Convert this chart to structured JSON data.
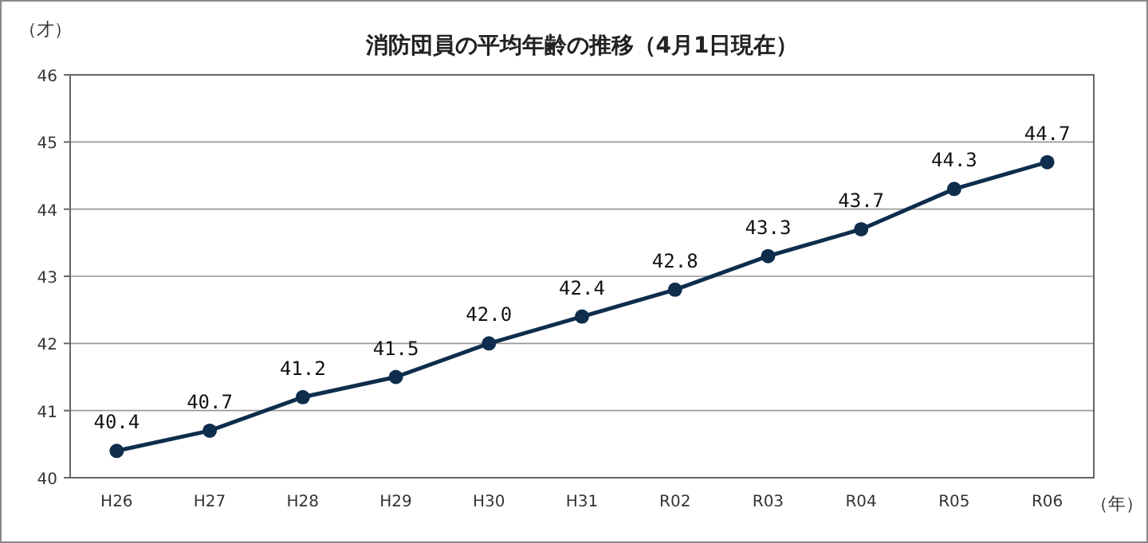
{
  "chart_data": {
    "type": "line",
    "title": "消防団員の平均年齢の推移（4月1日現在）",
    "ylabel": "（才）",
    "xlabel": "（年）",
    "categories": [
      "H26",
      "H27",
      "H28",
      "H29",
      "H30",
      "H31",
      "R02",
      "R03",
      "R04",
      "R05",
      "R06"
    ],
    "series": [
      {
        "color": "#0f2d4d",
        "values": [
          40.4,
          40.7,
          41.2,
          41.5,
          42.0,
          42.4,
          42.8,
          43.3,
          43.7,
          44.3,
          44.7
        ]
      }
    ],
    "value_labels": [
      "40.4",
      "40.7",
      "41.2",
      "41.5",
      "42.0",
      "42.4",
      "42.8",
      "43.3",
      "43.7",
      "44.3",
      "44.7"
    ],
    "ylim": [
      40,
      46
    ],
    "yticks": [
      40,
      41,
      42,
      43,
      44,
      45,
      46
    ],
    "grid": "y",
    "marker": "circle",
    "line_style": "solid"
  }
}
